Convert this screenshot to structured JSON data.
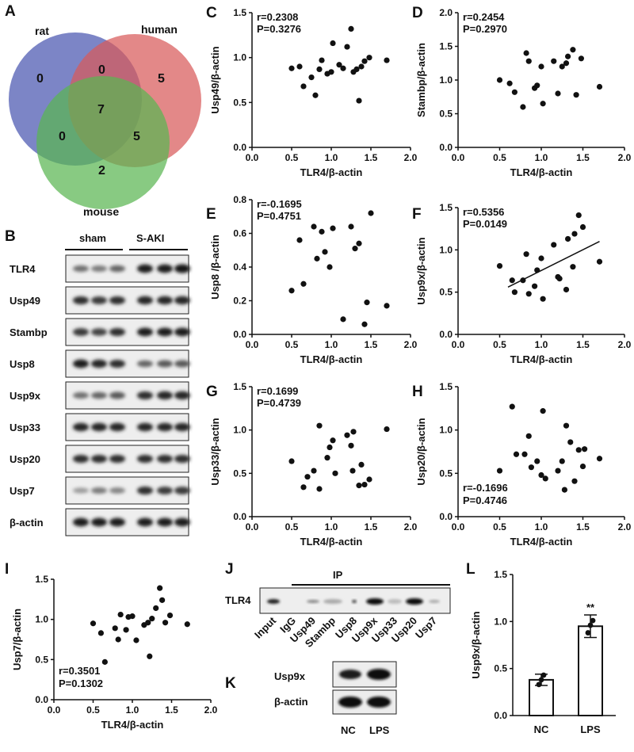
{
  "panels": {
    "A": "A",
    "B": "B",
    "C": "C",
    "D": "D",
    "E": "E",
    "F": "F",
    "G": "G",
    "H": "H",
    "I": "I",
    "J": "J",
    "K": "K",
    "L": "L"
  },
  "venn": {
    "sets": [
      {
        "name": "rat",
        "color": "#4a56b0"
      },
      {
        "name": "human",
        "color": "#d85a5a"
      },
      {
        "name": "mouse",
        "color": "#5ab552"
      }
    ],
    "counts": {
      "rat_only": "0",
      "human_only": "5",
      "mouse_only": "2",
      "rat_human": "0",
      "rat_mouse": "0",
      "human_mouse": "5",
      "all": "7"
    }
  },
  "western_B": {
    "groups": [
      "sham",
      "S-AKI"
    ],
    "rows": [
      "TLR4",
      "Usp49",
      "Stambp",
      "Usp8",
      "Usp9x",
      "Usp33",
      "Usp20",
      "Usp7",
      "β-actin"
    ]
  },
  "chart_data": [
    {
      "panel": "C",
      "type": "scatter",
      "xlabel": "TLR4/β-actin",
      "ylabel": "Usp49/β-actin",
      "xlim": [
        0,
        2.0
      ],
      "ylim": [
        0,
        1.5
      ],
      "xticks": [
        "0.0",
        "0.5",
        "1.0",
        "1.5",
        "2.0"
      ],
      "yticks": [
        "0.0",
        "0.5",
        "1.0",
        "1.5"
      ],
      "r": "r=0.2308",
      "p": "P=0.3276",
      "stat_pos": "top-left",
      "trendline": null,
      "points": [
        [
          0.5,
          0.88
        ],
        [
          0.6,
          0.9
        ],
        [
          0.65,
          0.68
        ],
        [
          0.75,
          0.78
        ],
        [
          0.8,
          0.58
        ],
        [
          0.85,
          0.87
        ],
        [
          0.88,
          0.97
        ],
        [
          0.95,
          0.82
        ],
        [
          1.0,
          0.84
        ],
        [
          1.02,
          1.16
        ],
        [
          1.1,
          0.92
        ],
        [
          1.15,
          0.88
        ],
        [
          1.2,
          1.12
        ],
        [
          1.25,
          1.32
        ],
        [
          1.28,
          0.84
        ],
        [
          1.32,
          0.87
        ],
        [
          1.35,
          0.52
        ],
        [
          1.38,
          0.9
        ],
        [
          1.42,
          0.96
        ],
        [
          1.48,
          1.0
        ],
        [
          1.7,
          0.97
        ]
      ]
    },
    {
      "panel": "D",
      "type": "scatter",
      "xlabel": "TLR4/β-actin",
      "ylabel": "Stambp/β-actin",
      "xlim": [
        0,
        2.0
      ],
      "ylim": [
        0,
        2.0
      ],
      "xticks": [
        "0.0",
        "0.5",
        "1.0",
        "1.5",
        "2.0"
      ],
      "yticks": [
        "0.0",
        "0.5",
        "1.0",
        "1.5",
        "2.0"
      ],
      "r": "r=0.2454",
      "p": "P=0.2970",
      "stat_pos": "top-left",
      "trendline": null,
      "points": [
        [
          0.5,
          1.0
        ],
        [
          0.62,
          0.95
        ],
        [
          0.68,
          0.82
        ],
        [
          0.78,
          0.6
        ],
        [
          0.82,
          1.4
        ],
        [
          0.85,
          1.28
        ],
        [
          0.92,
          0.88
        ],
        [
          0.95,
          0.92
        ],
        [
          1.0,
          1.2
        ],
        [
          1.02,
          0.65
        ],
        [
          1.15,
          1.28
        ],
        [
          1.2,
          0.8
        ],
        [
          1.25,
          1.2
        ],
        [
          1.3,
          1.25
        ],
        [
          1.32,
          1.35
        ],
        [
          1.38,
          1.45
        ],
        [
          1.42,
          0.78
        ],
        [
          1.48,
          1.32
        ],
        [
          1.7,
          0.9
        ]
      ]
    },
    {
      "panel": "E",
      "type": "scatter",
      "xlabel": "TLR4/β-actin",
      "ylabel": "Usp8 /β-actin",
      "xlim": [
        0,
        2.0
      ],
      "ylim": [
        0,
        0.8
      ],
      "xticks": [
        "0.0",
        "0.5",
        "1.0",
        "1.5",
        "2.0"
      ],
      "yticks": [
        "0.0",
        "0.2",
        "0.4",
        "0.6",
        "0.8"
      ],
      "r": "r=-0.1695",
      "p": "P=0.4751",
      "stat_pos": "top-left",
      "trendline": null,
      "points": [
        [
          0.5,
          0.26
        ],
        [
          0.6,
          0.56
        ],
        [
          0.65,
          0.3
        ],
        [
          0.78,
          0.64
        ],
        [
          0.82,
          0.45
        ],
        [
          0.88,
          0.61
        ],
        [
          0.92,
          0.49
        ],
        [
          0.98,
          0.4
        ],
        [
          1.02,
          0.63
        ],
        [
          1.15,
          0.09
        ],
        [
          1.25,
          0.64
        ],
        [
          1.3,
          0.51
        ],
        [
          1.35,
          0.54
        ],
        [
          1.42,
          0.06
        ],
        [
          1.45,
          0.19
        ],
        [
          1.5,
          0.72
        ],
        [
          1.7,
          0.17
        ]
      ]
    },
    {
      "panel": "F",
      "type": "scatter",
      "xlabel": "TLR4/β-actin",
      "ylabel": "Usp9x/β-actin",
      "xlim": [
        0,
        2.0
      ],
      "ylim": [
        0,
        1.5
      ],
      "xticks": [
        "0.0",
        "0.5",
        "1.0",
        "1.5",
        "2.0"
      ],
      "yticks": [
        "0.0",
        "0.5",
        "1.0",
        "1.5"
      ],
      "r": "r=0.5356",
      "p": "P=0.0149",
      "stat_pos": "top-left",
      "trendline": [
        [
          0.6,
          0.56
        ],
        [
          1.7,
          1.1
        ]
      ],
      "points": [
        [
          0.5,
          0.81
        ],
        [
          0.65,
          0.64
        ],
        [
          0.68,
          0.5
        ],
        [
          0.78,
          0.64
        ],
        [
          0.82,
          0.95
        ],
        [
          0.85,
          0.48
        ],
        [
          0.92,
          0.57
        ],
        [
          0.95,
          0.76
        ],
        [
          1.0,
          0.9
        ],
        [
          1.02,
          0.42
        ],
        [
          1.15,
          1.06
        ],
        [
          1.2,
          0.68
        ],
        [
          1.22,
          0.66
        ],
        [
          1.3,
          0.53
        ],
        [
          1.32,
          1.13
        ],
        [
          1.38,
          0.8
        ],
        [
          1.4,
          1.19
        ],
        [
          1.45,
          1.41
        ],
        [
          1.5,
          1.27
        ],
        [
          1.7,
          0.86
        ]
      ]
    },
    {
      "panel": "G",
      "type": "scatter",
      "xlabel": "TLR4/β-actin",
      "ylabel": "Usp33/β-actin",
      "xlim": [
        0,
        2.0
      ],
      "ylim": [
        0,
        1.5
      ],
      "xticks": [
        "0.0",
        "0.5",
        "1.0",
        "1.5",
        "2.0"
      ],
      "yticks": [
        "0.0",
        "0.5",
        "1.0",
        "1.5"
      ],
      "r": "r=0.1699",
      "p": "P=0.4739",
      "stat_pos": "top-left",
      "trendline": null,
      "points": [
        [
          0.5,
          0.64
        ],
        [
          0.65,
          0.34
        ],
        [
          0.7,
          0.46
        ],
        [
          0.78,
          0.53
        ],
        [
          0.85,
          0.32
        ],
        [
          0.85,
          1.05
        ],
        [
          0.95,
          0.68
        ],
        [
          0.98,
          0.8
        ],
        [
          1.02,
          0.88
        ],
        [
          1.05,
          0.5
        ],
        [
          1.2,
          0.94
        ],
        [
          1.25,
          0.82
        ],
        [
          1.27,
          0.53
        ],
        [
          1.28,
          0.98
        ],
        [
          1.35,
          0.36
        ],
        [
          1.38,
          0.6
        ],
        [
          1.42,
          0.37
        ],
        [
          1.48,
          0.43
        ],
        [
          1.7,
          1.01
        ]
      ]
    },
    {
      "panel": "H",
      "type": "scatter",
      "xlabel": "TLR4/β-actin",
      "ylabel": "Usp20/β-actin",
      "xlim": [
        0,
        2.0
      ],
      "ylim": [
        0,
        1.5
      ],
      "xticks": [
        "0.0",
        "0.5",
        "1.0",
        "1.5",
        "2.0"
      ],
      "yticks": [
        "0.0",
        "0.5",
        "1.0",
        "1.5"
      ],
      "r": "r=-0.1696",
      "p": "P=0.4746",
      "stat_pos": "bottom-left",
      "trendline": null,
      "points": [
        [
          0.5,
          0.53
        ],
        [
          0.65,
          1.27
        ],
        [
          0.7,
          0.72
        ],
        [
          0.8,
          0.72
        ],
        [
          0.85,
          0.93
        ],
        [
          0.88,
          0.57
        ],
        [
          0.95,
          0.64
        ],
        [
          1.0,
          0.48
        ],
        [
          1.02,
          1.22
        ],
        [
          1.05,
          0.44
        ],
        [
          1.2,
          0.53
        ],
        [
          1.25,
          0.64
        ],
        [
          1.28,
          0.31
        ],
        [
          1.3,
          1.05
        ],
        [
          1.35,
          0.86
        ],
        [
          1.4,
          0.41
        ],
        [
          1.45,
          0.77
        ],
        [
          1.5,
          0.58
        ],
        [
          1.52,
          0.78
        ],
        [
          1.7,
          0.67
        ]
      ]
    },
    {
      "panel": "I",
      "type": "scatter",
      "xlabel": "TLR4/β-actin",
      "ylabel": "Usp7/β-actin",
      "xlim": [
        0,
        2.0
      ],
      "ylim": [
        0,
        1.5
      ],
      "xticks": [
        "0.0",
        "0.5",
        "1.0",
        "1.5",
        "2.0"
      ],
      "yticks": [
        "0.0",
        "0.5",
        "1.0",
        "1.5"
      ],
      "r": "r=0.3501",
      "p": "P=0.1302",
      "stat_pos": "bottom-left",
      "trendline": null,
      "points": [
        [
          0.5,
          0.95
        ],
        [
          0.6,
          0.83
        ],
        [
          0.65,
          0.47
        ],
        [
          0.78,
          0.89
        ],
        [
          0.82,
          0.75
        ],
        [
          0.85,
          1.06
        ],
        [
          0.92,
          0.87
        ],
        [
          0.95,
          1.03
        ],
        [
          1.0,
          1.04
        ],
        [
          1.05,
          0.74
        ],
        [
          1.15,
          0.93
        ],
        [
          1.2,
          0.96
        ],
        [
          1.22,
          0.54
        ],
        [
          1.25,
          1.01
        ],
        [
          1.3,
          1.14
        ],
        [
          1.35,
          1.39
        ],
        [
          1.38,
          1.24
        ],
        [
          1.42,
          0.96
        ],
        [
          1.48,
          1.05
        ],
        [
          1.7,
          0.94
        ]
      ]
    },
    {
      "panel": "L",
      "type": "bar",
      "xlabel": "",
      "ylabel": "Usp9x/β-actin",
      "categories": [
        "NC",
        "LPS"
      ],
      "values": [
        0.38,
        0.95
      ],
      "errors": [
        0.06,
        0.12
      ],
      "points": [
        [
          0.33,
          0.38,
          0.43
        ],
        [
          0.88,
          0.96,
          1.01
        ]
      ],
      "ylim": [
        0,
        1.5
      ],
      "yticks": [
        "0.0",
        "0.5",
        "1.0",
        "1.5"
      ],
      "annotation": "**"
    }
  ],
  "ip_J": {
    "header": "IP",
    "row_label": "TLR4",
    "lanes": [
      "Input",
      "IgG",
      "Usp49",
      "Stambp",
      "Usp8",
      "Usp9x",
      "Usp33",
      "Usp20",
      "Usp7"
    ]
  },
  "western_K": {
    "rows": [
      "Usp9x",
      "β-actin"
    ],
    "lanes": [
      "NC",
      "LPS"
    ]
  }
}
